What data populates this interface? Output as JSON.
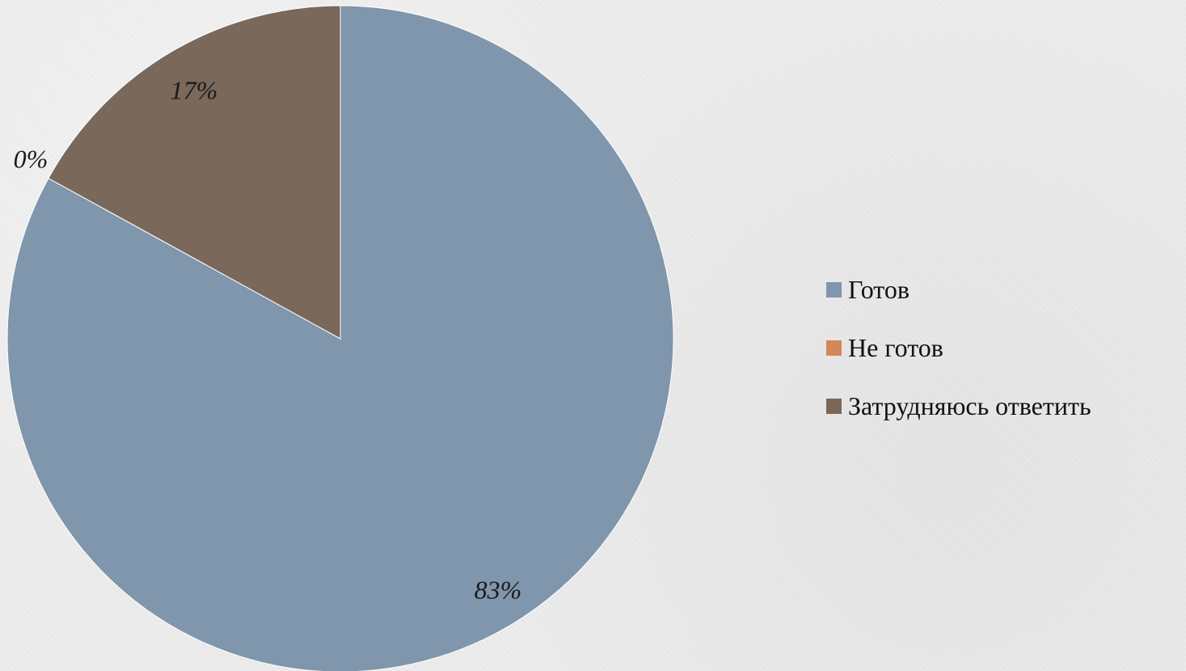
{
  "chart_data": {
    "type": "pie",
    "title": "",
    "categories": [
      "Готов",
      "Не готов",
      "Затрудняюсь ответить"
    ],
    "values": [
      83,
      0,
      17
    ],
    "data_labels": [
      "83%",
      "0%",
      "17%"
    ],
    "colors": [
      "#7f96ac",
      "#d4875b",
      "#7a685b"
    ],
    "start_angle": "12 o'clock",
    "direction": "clockwise",
    "legend_position": "right"
  }
}
